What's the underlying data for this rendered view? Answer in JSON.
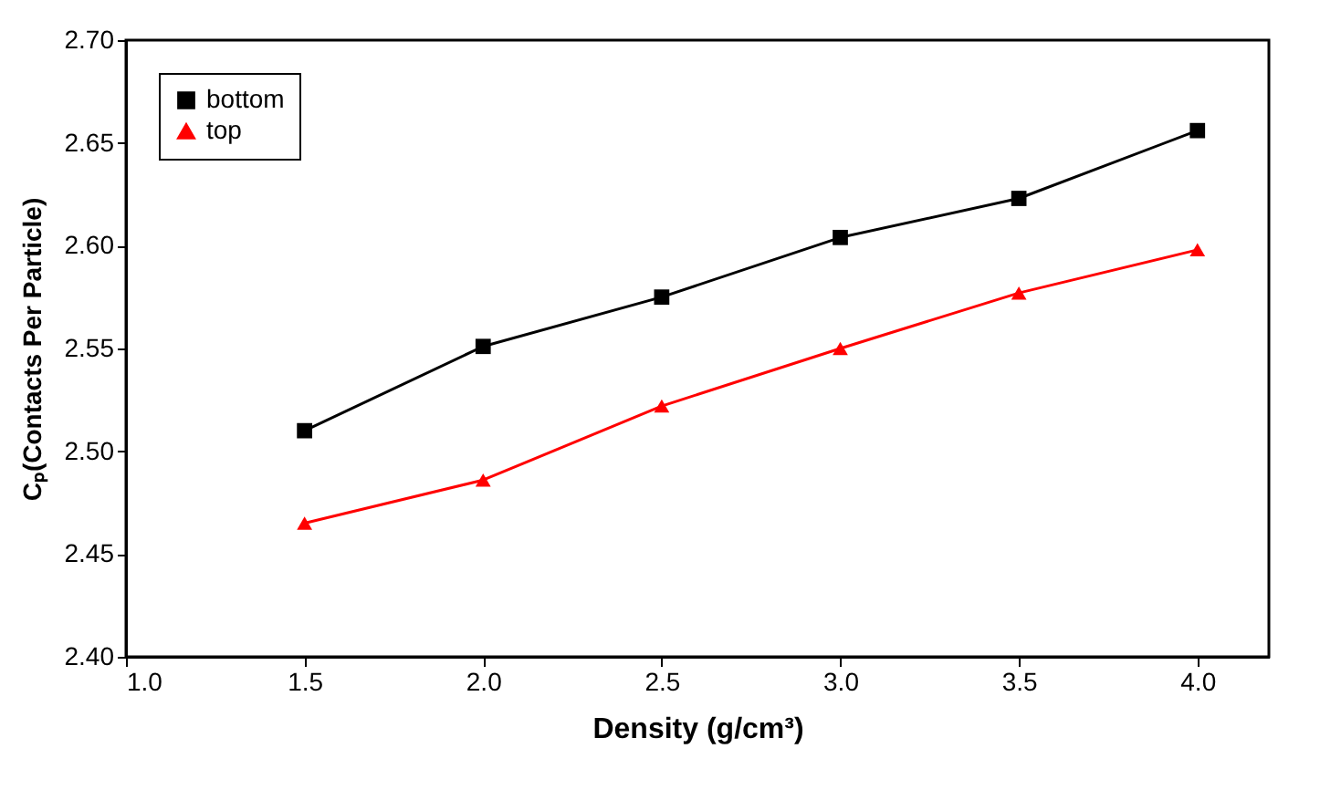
{
  "chart_data": {
    "type": "line",
    "xlabel": "Density (g/cm³)",
    "ylabel": "Cₚ(Contacts Per Particle)",
    "x": [
      1.5,
      2.0,
      2.5,
      3.0,
      3.5,
      4.0
    ],
    "series": [
      {
        "name": "bottom",
        "color": "#000000",
        "marker": "square",
        "values": [
          2.51,
          2.551,
          2.575,
          2.604,
          2.623,
          2.656
        ]
      },
      {
        "name": "top",
        "color": "#ff0000",
        "marker": "triangle",
        "values": [
          2.465,
          2.486,
          2.522,
          2.55,
          2.577,
          2.598
        ]
      }
    ],
    "xlim": [
      1.0,
      4.2
    ],
    "xticks": [
      {
        "value": 1.0,
        "label": "1.0"
      },
      {
        "value": 1.5,
        "label": "1.5"
      },
      {
        "value": 2.0,
        "label": "2.0"
      },
      {
        "value": 2.5,
        "label": "2.5"
      },
      {
        "value": 3.0,
        "label": "3.0"
      },
      {
        "value": 3.5,
        "label": "3.5"
      },
      {
        "value": 4.0,
        "label": "4.0"
      }
    ],
    "ylim": [
      2.4,
      2.7
    ],
    "yticks": [
      {
        "value": 2.4,
        "label": "2.40"
      },
      {
        "value": 2.45,
        "label": "2.45"
      },
      {
        "value": 2.5,
        "label": "2.50"
      },
      {
        "value": 2.55,
        "label": "2.55"
      },
      {
        "value": 2.6,
        "label": "2.60"
      },
      {
        "value": 2.65,
        "label": "2.65"
      },
      {
        "value": 2.7,
        "label": "2.70"
      }
    ],
    "grid": false,
    "legend": "top left",
    "line_style": "solid"
  }
}
